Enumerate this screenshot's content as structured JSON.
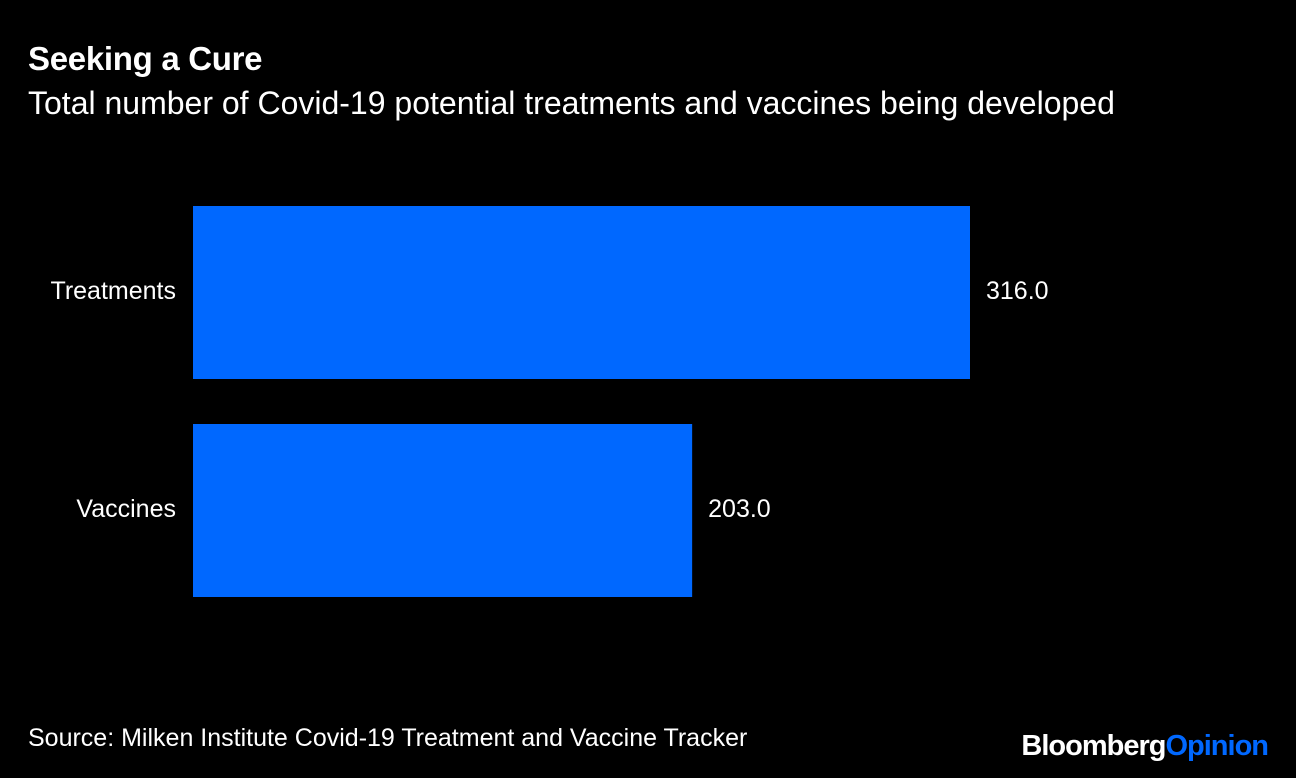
{
  "chart_data": {
    "type": "bar",
    "orientation": "horizontal",
    "title": "Seeking a Cure",
    "subtitle": "Total number of Covid-19 potential treatments and vaccines being developed",
    "categories": [
      "Treatments",
      "Vaccines"
    ],
    "values": [
      316.0,
      203.0
    ],
    "value_labels": [
      "316.0",
      "203.0"
    ],
    "xlim": [
      0,
      316
    ],
    "bar_color": "#0068ff",
    "grid": false,
    "legend": "none"
  },
  "footer": {
    "source": "Source: Milken Institute Covid-19 Treatment and Vaccine Tracker",
    "brand_part_1": "Bloomberg",
    "brand_part_2": "Opinion"
  },
  "colors": {
    "background": "#000000",
    "text": "#ffffff",
    "accent": "#0068ff"
  }
}
